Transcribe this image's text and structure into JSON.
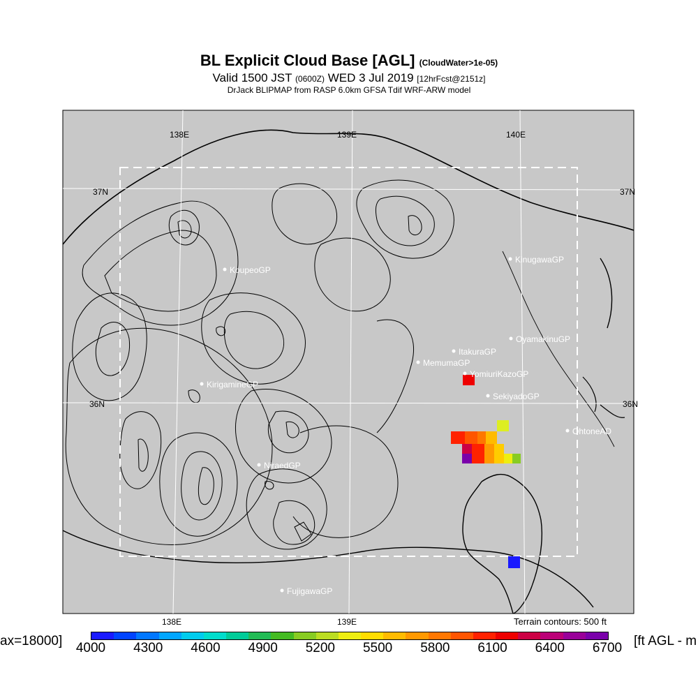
{
  "header": {
    "title": "BL Explicit Cloud Base [AGL]",
    "title_note": "(CloudWater>1e-05)",
    "valid_main": "Valid 1500 JST",
    "valid_utc": "(0600Z)",
    "valid_date": "WED 3 Jul 2019",
    "forecast": "[12hrFcst@2151z]",
    "subtitle": "DrJack BLIPMAP from RASP 6.0km GFSA Tdif WRF-ARW model"
  },
  "grid_labels": {
    "top_138": "138E",
    "top_139": "139E",
    "top_140": "140E",
    "bottom_138": "138E",
    "bottom_139": "139E",
    "left_37": "37N",
    "right_37": "37N",
    "left_36": "36N",
    "right_36": "36N"
  },
  "sites": [
    {
      "name": "KoupeoGP"
    },
    {
      "name": "KinugawaGP"
    },
    {
      "name": "OyamakinuGP"
    },
    {
      "name": "ItakuraGP"
    },
    {
      "name": "MemumaGP"
    },
    {
      "name": "YomiuriKazoGP"
    },
    {
      "name": "SekiyadoGP"
    },
    {
      "name": "KirigamineGP"
    },
    {
      "name": "OhtoneAD"
    },
    {
      "name": "NiraedGP"
    },
    {
      "name": "FujigawaGP"
    }
  ],
  "terrain_note": "Terrain contours: 500 ft",
  "colorbar": {
    "left_text": "ax=18000]",
    "right_text": "[ft AGL - m",
    "ticks": [
      "4000",
      "4300",
      "4600",
      "4900",
      "5200",
      "5500",
      "5800",
      "6100",
      "6400",
      "6700"
    ],
    "colors": [
      "#1a1aff",
      "#0044ff",
      "#0077ff",
      "#00a6ff",
      "#00ccee",
      "#00ddcc",
      "#00cc99",
      "#22bb55",
      "#44bb22",
      "#88cc22",
      "#bbdd22",
      "#eeee11",
      "#ffdd00",
      "#ffbb00",
      "#ff9900",
      "#ff7700",
      "#ff5500",
      "#ff2200",
      "#ee0000",
      "#cc0044",
      "#bb0077",
      "#990099",
      "#7a00aa"
    ]
  },
  "colors": {
    "map_background": "#c8c8c8",
    "contour": "#000000",
    "site_text": "#ffffff"
  }
}
